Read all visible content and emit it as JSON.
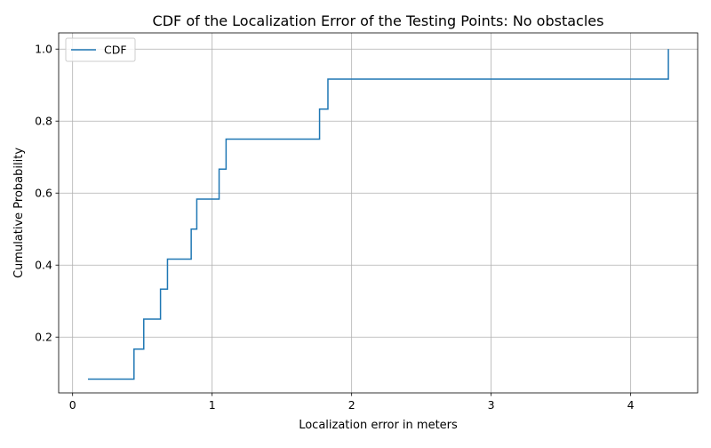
{
  "chart_data": {
    "type": "line",
    "step": "post",
    "title": "CDF of the Localization Error of the Testing Points: No obstacles",
    "xlabel": "Localization error in meters",
    "ylabel": "Cumulative Probability",
    "xlim": [
      -0.1,
      4.48
    ],
    "ylim": [
      0.045,
      1.045
    ],
    "xticks": [
      0,
      1,
      2,
      3,
      4
    ],
    "yticks": [
      0.2,
      0.4,
      0.6,
      0.8,
      1.0
    ],
    "xtick_labels": [
      "0",
      "1",
      "2",
      "3",
      "4"
    ],
    "ytick_labels": [
      "0.2",
      "0.4",
      "0.6",
      "0.8",
      "1.0"
    ],
    "grid": true,
    "legend_position": "upper-left",
    "colors": {
      "series": "#1f77b4",
      "grid": "#b0b0b0",
      "axis": "#000000"
    },
    "series": [
      {
        "name": "CDF",
        "x": [
          0.11,
          0.44,
          0.51,
          0.63,
          0.68,
          0.85,
          0.89,
          1.05,
          1.1,
          1.77,
          1.83,
          4.27
        ],
        "y": [
          0.0833,
          0.1667,
          0.25,
          0.3333,
          0.4167,
          0.5,
          0.5833,
          0.6667,
          0.75,
          0.8333,
          0.9167,
          1.0
        ]
      }
    ]
  }
}
